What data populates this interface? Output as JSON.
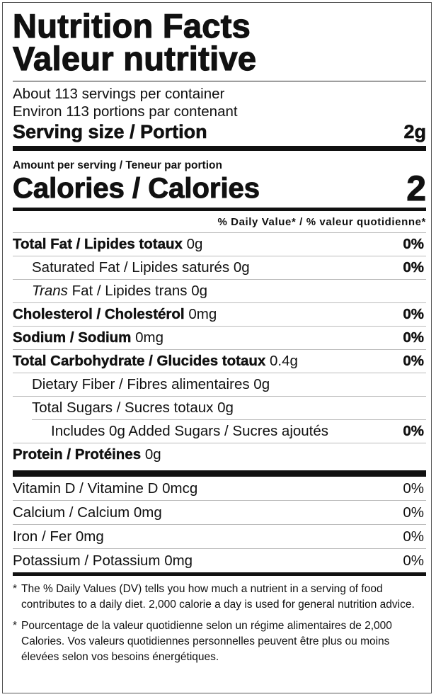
{
  "title": {
    "line1": "Nutrition Facts",
    "line2": "Valeur nutritive"
  },
  "servings": {
    "en": "About 113 servings per container",
    "fr": "Environ 113 portions par contenant"
  },
  "serving_size": {
    "label": "Serving size / Portion",
    "value": "2g"
  },
  "amount_per_serving": "Amount per serving / Teneur par portion",
  "calories": {
    "label": "Calories / Calories",
    "value": "2"
  },
  "dv_header": "% Daily Value* / % valeur quotidienne*",
  "nutrients": [
    {
      "name": "Total Fat / Lipides totaux",
      "amount": "0g",
      "dv": "0%"
    },
    {
      "name": "Saturated Fat / Lipides saturés",
      "amount": "0g",
      "dv": "0%"
    },
    {
      "name_italic": "Trans",
      "name": "Fat / Lipides trans",
      "amount": "0g",
      "dv": ""
    },
    {
      "name": "Cholesterol / Cholestérol",
      "amount": "0mg",
      "dv": "0%"
    },
    {
      "name": "Sodium / Sodium",
      "amount": "0mg",
      "dv": "0%"
    },
    {
      "name": "Total Carbohydrate / Glucides totaux",
      "amount": "0.4g",
      "dv": "0%"
    },
    {
      "name": "Dietary Fiber / Fibres alimentaires",
      "amount": "0g",
      "dv": ""
    },
    {
      "name": "Total Sugars / Sucres totaux",
      "amount": "0g",
      "dv": ""
    },
    {
      "name": "Includes 0g Added Sugars / Sucres ajoutés",
      "amount": "",
      "dv": "0%"
    },
    {
      "name": "Protein / Protéines",
      "amount": "0g",
      "dv": ""
    }
  ],
  "vitamins": [
    {
      "name": "Vitamin D / Vitamine D 0mcg",
      "dv": "0%"
    },
    {
      "name": "Calcium / Calcium 0mg",
      "dv": "0%"
    },
    {
      "name": "Iron / Fer 0mg",
      "dv": "0%"
    },
    {
      "name": "Potassium / Potassium 0mg",
      "dv": "0%"
    }
  ],
  "footnotes": [
    {
      "star": "*",
      "text": "The % Daily Values (DV) tells you how much a nutrient in a serving of food contributes to a daily diet. 2,000 calorie a day is used for general nutrition advice."
    },
    {
      "star": "*",
      "text": "Pourcentage de la valeur quotidienne selon un régime alimentaires de 2,000 Calories. Vos valeurs quotidiennes personnelles peuvent être plus ou moins élevées selon vos besoins énergétiques."
    }
  ]
}
